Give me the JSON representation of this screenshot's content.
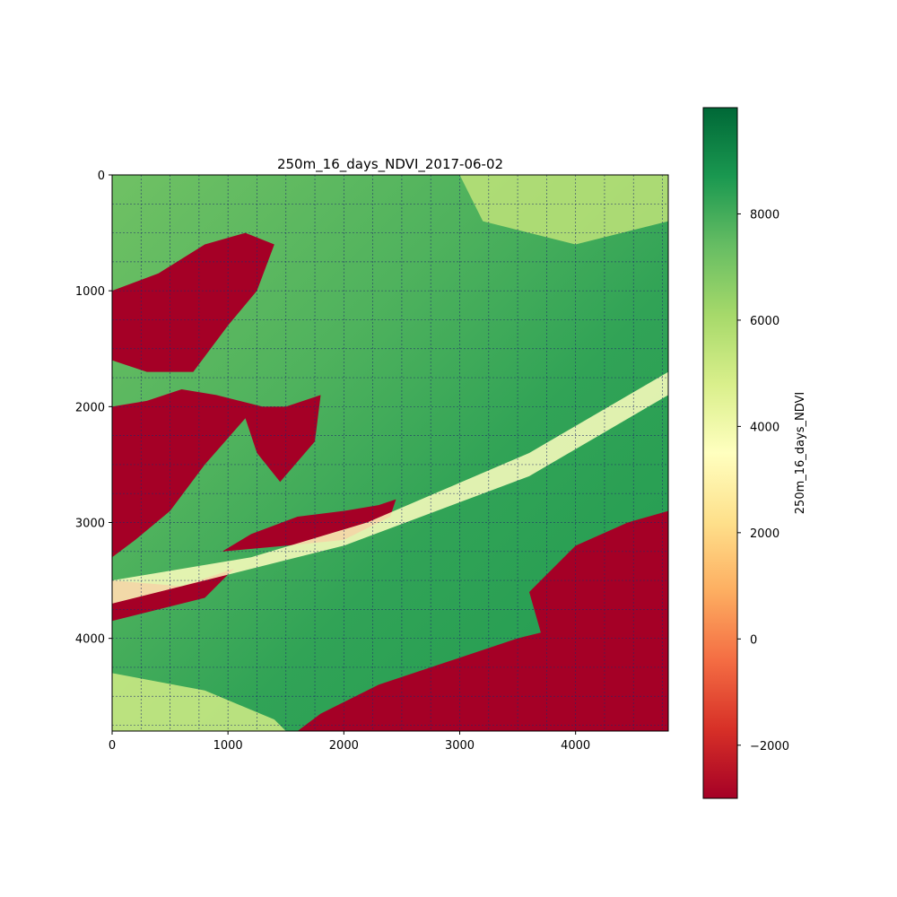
{
  "chart_data": {
    "type": "heatmap",
    "title": "250m_16_days_NDVI_2017-06-02",
    "xlabel": "",
    "ylabel": "",
    "xlim": [
      0,
      4800
    ],
    "ylim": [
      4800,
      0
    ],
    "x_ticks": [
      0,
      1000,
      2000,
      3000,
      4000
    ],
    "y_ticks": [
      0,
      1000,
      2000,
      3000,
      4000
    ],
    "x_tick_labels": [
      "0",
      "1000",
      "2000",
      "3000",
      "4000"
    ],
    "y_tick_labels": [
      "0",
      "1000",
      "2000",
      "3000",
      "4000"
    ],
    "grid": true,
    "grid_spacing": 250,
    "grid_color": "#1f2a6b",
    "colormap": "RdYlGn",
    "colorbar": {
      "label": "250m_16_days_NDVI",
      "range": [
        -3000,
        10000
      ],
      "ticks": [
        -2000,
        0,
        2000,
        4000,
        6000,
        8000
      ],
      "tick_labels": [
        "−2000",
        "0",
        "2000",
        "4000",
        "6000",
        "8000"
      ]
    },
    "regions": [
      {
        "name": "water-upper-left",
        "value": -3000,
        "polygon": [
          [
            0,
            1000
          ],
          [
            400,
            850
          ],
          [
            800,
            600
          ],
          [
            1150,
            500
          ],
          [
            1400,
            600
          ],
          [
            1250,
            1000
          ],
          [
            1000,
            1300
          ],
          [
            700,
            1700
          ],
          [
            300,
            1700
          ],
          [
            0,
            1600
          ]
        ]
      },
      {
        "name": "water-center-left",
        "value": -3000,
        "polygon": [
          [
            0,
            2000
          ],
          [
            300,
            1950
          ],
          [
            600,
            1850
          ],
          [
            900,
            1900
          ],
          [
            1300,
            2000
          ],
          [
            1500,
            2000
          ],
          [
            1800,
            1900
          ],
          [
            1750,
            2300
          ],
          [
            1450,
            2650
          ],
          [
            1250,
            2400
          ],
          [
            1150,
            2100
          ],
          [
            800,
            2500
          ],
          [
            500,
            2900
          ],
          [
            200,
            3150
          ],
          [
            0,
            3300
          ]
        ]
      },
      {
        "name": "water-center-island",
        "value": -3000,
        "polygon": [
          [
            950,
            3250
          ],
          [
            1200,
            3100
          ],
          [
            1600,
            2950
          ],
          [
            2000,
            2900
          ],
          [
            2300,
            2850
          ],
          [
            2450,
            2800
          ],
          [
            2400,
            2950
          ],
          [
            2000,
            3150
          ],
          [
            1500,
            3200
          ]
        ]
      },
      {
        "name": "water-lower-left",
        "value": -3000,
        "polygon": [
          [
            0,
            3500
          ],
          [
            600,
            3550
          ],
          [
            1050,
            3400
          ],
          [
            800,
            3650
          ],
          [
            0,
            3850
          ]
        ]
      },
      {
        "name": "water-ocean",
        "value": -3000,
        "polygon": [
          [
            1600,
            4800
          ],
          [
            1800,
            4650
          ],
          [
            2300,
            4400
          ],
          [
            2900,
            4200
          ],
          [
            3500,
            4000
          ],
          [
            3700,
            3950
          ],
          [
            3600,
            3600
          ],
          [
            4000,
            3200
          ],
          [
            4450,
            3000
          ],
          [
            4800,
            2900
          ],
          [
            4800,
            4800
          ]
        ]
      },
      {
        "name": "bright-band",
        "value": 3500,
        "polygon": [
          [
            0,
            3500
          ],
          [
            1200,
            3300
          ],
          [
            2200,
            3000
          ],
          [
            2900,
            2700
          ],
          [
            3600,
            2400
          ],
          [
            4800,
            1700
          ],
          [
            4800,
            1900
          ],
          [
            3600,
            2600
          ],
          [
            2800,
            2900
          ],
          [
            2000,
            3200
          ],
          [
            1000,
            3450
          ],
          [
            0,
            3700
          ]
        ]
      },
      {
        "name": "upper-right-pale",
        "value": 5500,
        "polygon": [
          [
            3000,
            0
          ],
          [
            4800,
            0
          ],
          [
            4800,
            400
          ],
          [
            4000,
            600
          ],
          [
            3200,
            400
          ]
        ]
      },
      {
        "name": "lower-left-pale",
        "value": 5000,
        "polygon": [
          [
            0,
            4300
          ],
          [
            800,
            4450
          ],
          [
            1400,
            4700
          ],
          [
            1500,
            4800
          ],
          [
            0,
            4800
          ]
        ]
      }
    ]
  }
}
